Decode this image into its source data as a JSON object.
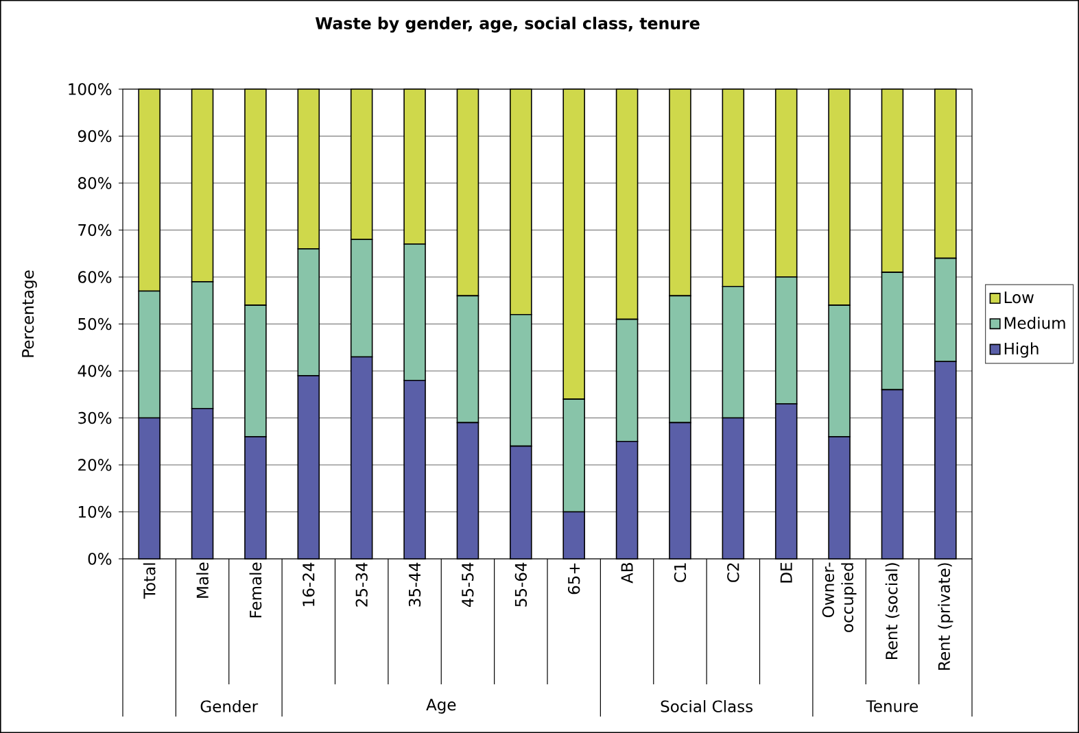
{
  "chart_data": {
    "type": "bar",
    "stacked": true,
    "title": "Waste by gender, age, social class, tenure",
    "ylabel": "Percentage",
    "categories": [
      "Total",
      "Male",
      "Female",
      "16-24",
      "25-34",
      "35-44",
      "45-54",
      "55-64",
      "65+",
      "AB",
      "C1",
      "C2",
      "DE",
      "Owner-occupied",
      "Rent (social)",
      "Rent (private)"
    ],
    "series": [
      {
        "name": "High",
        "color": "#5a5fa8",
        "values": [
          30,
          32,
          26,
          39,
          43,
          38,
          29,
          24,
          10,
          25,
          29,
          30,
          33,
          26,
          36,
          42
        ]
      },
      {
        "name": "Medium",
        "color": "#88c4a9",
        "values": [
          27,
          27,
          28,
          27,
          25,
          29,
          27,
          28,
          24,
          26,
          27,
          28,
          27,
          28,
          25,
          22
        ]
      },
      {
        "name": "Low",
        "color": "#cfd84b",
        "values": [
          43,
          41,
          46,
          34,
          32,
          33,
          44,
          48,
          66,
          49,
          44,
          42,
          40,
          46,
          39,
          36
        ]
      }
    ],
    "ylim": [
      0,
      100
    ],
    "yticks": [
      {
        "value": 0,
        "label": "0%"
      },
      {
        "value": 10,
        "label": "10%"
      },
      {
        "value": 20,
        "label": "20%"
      },
      {
        "value": 30,
        "label": "30%"
      },
      {
        "value": 40,
        "label": "40%"
      },
      {
        "value": 50,
        "label": "50%"
      },
      {
        "value": 60,
        "label": "60%"
      },
      {
        "value": 70,
        "label": "70%"
      },
      {
        "value": 80,
        "label": "80%"
      },
      {
        "value": 90,
        "label": "90%"
      },
      {
        "value": 100,
        "label": "100%"
      }
    ],
    "grid": "y",
    "legend": "right",
    "annotations": [
      "Gender",
      "Age",
      "Social Class",
      "Tenure"
    ]
  }
}
